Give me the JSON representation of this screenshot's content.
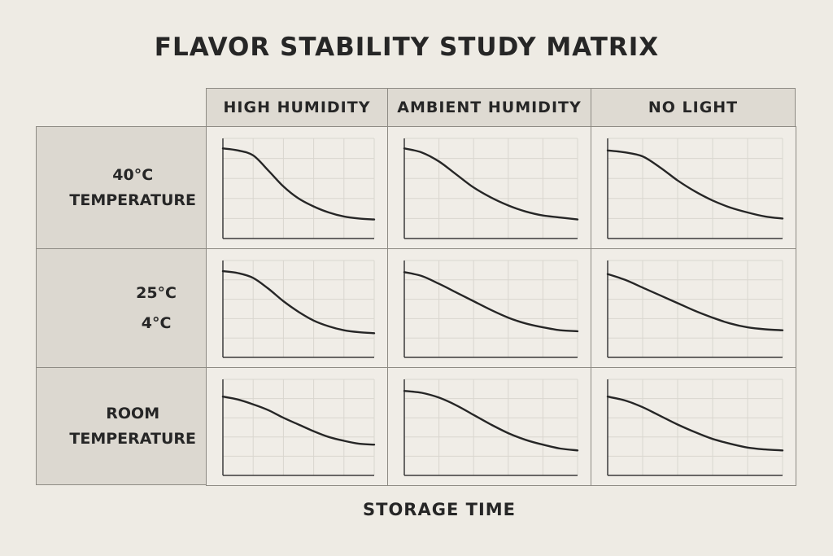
{
  "chart_data": {
    "type": "line",
    "title": "FLAVOR STABILITY STUDY MATRIX",
    "xlabel": "STORAGE TIME",
    "columns": [
      "HIGH HUMIDITY",
      "AMBIENT HUMIDITY",
      "NO LIGHT"
    ],
    "rows": [
      {
        "lines": [
          "40°C",
          "TEMPERATURE"
        ]
      },
      {
        "lines": [
          "25°C",
          "4°C"
        ]
      },
      {
        "lines": [
          "ROOM",
          "TEMPERATURE"
        ]
      }
    ],
    "grid": true,
    "x": [
      0,
      0.1,
      0.2,
      0.3,
      0.4,
      0.5,
      0.6,
      0.7,
      0.8,
      0.9,
      1.0
    ],
    "panels": [
      [
        {
          "values": [
            0.9,
            0.88,
            0.83,
            0.68,
            0.52,
            0.4,
            0.32,
            0.26,
            0.22,
            0.2,
            0.19
          ]
        },
        {
          "values": [
            0.9,
            0.86,
            0.77,
            0.64,
            0.51,
            0.41,
            0.33,
            0.27,
            0.23,
            0.21,
            0.19
          ]
        },
        {
          "values": [
            0.88,
            0.86,
            0.82,
            0.71,
            0.58,
            0.47,
            0.38,
            0.31,
            0.26,
            0.22,
            0.2
          ]
        }
      ],
      [
        {
          "values": [
            0.89,
            0.87,
            0.82,
            0.71,
            0.58,
            0.47,
            0.38,
            0.32,
            0.28,
            0.26,
            0.25
          ]
        },
        {
          "values": [
            0.88,
            0.84,
            0.76,
            0.67,
            0.58,
            0.49,
            0.41,
            0.35,
            0.31,
            0.28,
            0.27
          ]
        },
        {
          "values": [
            0.86,
            0.8,
            0.72,
            0.64,
            0.56,
            0.48,
            0.41,
            0.35,
            0.31,
            0.29,
            0.28
          ]
        }
      ],
      [
        {
          "values": [
            0.82,
            0.79,
            0.74,
            0.68,
            0.6,
            0.53,
            0.46,
            0.4,
            0.36,
            0.33,
            0.32
          ]
        },
        {
          "values": [
            0.88,
            0.86,
            0.81,
            0.73,
            0.63,
            0.53,
            0.44,
            0.37,
            0.32,
            0.28,
            0.26
          ]
        },
        {
          "values": [
            0.82,
            0.78,
            0.71,
            0.62,
            0.53,
            0.45,
            0.38,
            0.33,
            0.29,
            0.27,
            0.26
          ]
        }
      ]
    ]
  }
}
